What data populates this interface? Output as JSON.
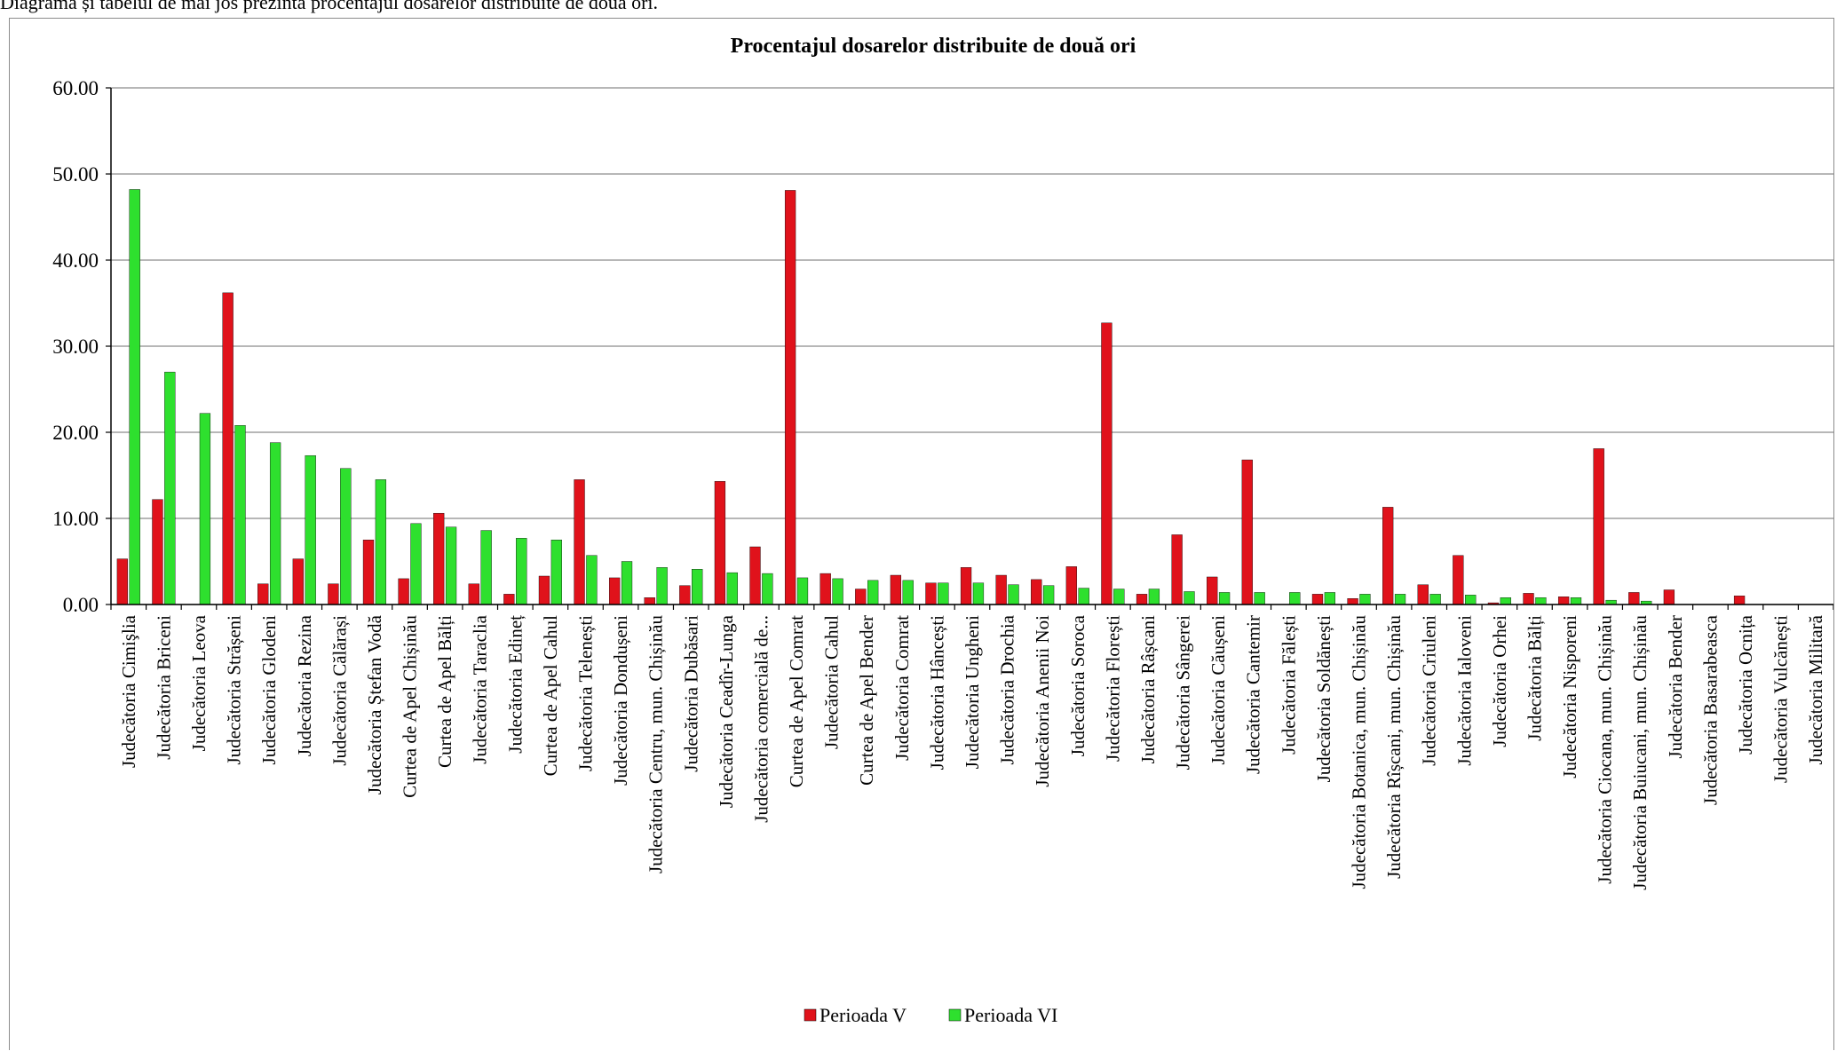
{
  "caption": "Diagrama și tabelul de mai jos prezintă procentajul dosarelor distribuite de două ori.",
  "colors": {
    "period_v": "#e0121b",
    "period_vi": "#2ee02e",
    "grid": "#8c8c8c"
  },
  "chart_data": {
    "type": "bar",
    "title": "Procentajul dosarelor distribuite de două ori",
    "xlabel": "",
    "ylabel": "",
    "ylim": [
      0,
      60
    ],
    "yticks": [
      "0.00",
      "10.00",
      "20.00",
      "30.00",
      "40.00",
      "50.00",
      "60.00"
    ],
    "grid": true,
    "legend_position": "bottom",
    "categories": [
      "Judecătoria Cimişlia",
      "Judecătoria Briceni",
      "Judecătoria Leova",
      "Judecătoria Strășeni",
      "Judecătoria Glodeni",
      "Judecătoria Rezina",
      "Judecătoria Călărași",
      "Judecătoria Ștefan Vodă",
      "Curtea de Apel Chișinău",
      "Curtea de Apel Bălți",
      "Judecătoria Taraclia",
      "Judecătoria Edineț",
      "Curtea de Apel Cahul",
      "Judecătoria Telenești",
      "Judecătoria Dondușeni",
      "Judecătoria Centru, mun. Chișinău",
      "Judecătoria Dubăsari",
      "Judecătoria Ceadîr-Lunga",
      "Judecătoria comercială de...",
      "Curtea de Apel Comrat",
      "Judecătoria Cahul",
      "Curtea de Apel Bender",
      "Judecătoria Comrat",
      "Judecătoria Hâncești",
      "Judecătoria Ungheni",
      "Judecătoria Drochia",
      "Judecătoria Anenii Noi",
      "Judecătoria Soroca",
      "Judecătoria Florești",
      "Judecătoria Râșcani",
      "Judecătoria Sângerei",
      "Judecătoria Căușeni",
      "Judecătoria Cantemir",
      "Judecătoria Fălești",
      "Judecătoria Soldănești",
      "Judecătoria Botanica, mun. Chișinău",
      "Judecătoria Rîșcani, mun. Chișinău",
      "Judecătoria Criuleni",
      "Judecătoria Ialoveni",
      "Judecătoria Orhei",
      "Judecătoria Bălți",
      "Judecătoria Nisporeni",
      "Judecătoria Ciocana, mun. Chișinău",
      "Judecătoria Buiucani, mun. Chișinău",
      "Judecătoria Bender",
      "Judecătoria Basarabeasca",
      "Judecătoria Ocnița",
      "Judecătoria Vulcănești",
      "Judecătoria Militară"
    ],
    "series": [
      {
        "name": "Perioada V",
        "values": [
          5.3,
          12.2,
          0,
          36.2,
          2.4,
          5.3,
          2.4,
          7.5,
          3.0,
          10.6,
          2.4,
          1.2,
          3.3,
          14.5,
          3.1,
          0.8,
          2.2,
          14.3,
          6.7,
          48.1,
          3.6,
          1.8,
          3.4,
          2.5,
          4.3,
          3.4,
          2.9,
          4.4,
          32.7,
          1.2,
          8.1,
          3.2,
          16.8,
          0,
          1.2,
          0.7,
          11.3,
          2.3,
          5.7,
          0.2,
          1.3,
          0.9,
          18.1,
          1.4,
          1.7,
          0,
          1.0,
          0,
          0
        ]
      },
      {
        "name": "Perioada VI",
        "values": [
          48.2,
          27.0,
          22.2,
          20.8,
          18.8,
          17.3,
          15.8,
          14.5,
          9.4,
          9.0,
          8.6,
          7.7,
          7.5,
          5.7,
          5.0,
          4.3,
          4.1,
          3.7,
          3.6,
          3.1,
          3.0,
          2.8,
          2.8,
          2.5,
          2.5,
          2.3,
          2.2,
          1.9,
          1.8,
          1.8,
          1.5,
          1.4,
          1.4,
          1.4,
          1.4,
          1.2,
          1.2,
          1.2,
          1.1,
          0.8,
          0.8,
          0.8,
          0.5,
          0.4,
          0,
          0,
          0,
          0,
          0
        ]
      }
    ]
  }
}
